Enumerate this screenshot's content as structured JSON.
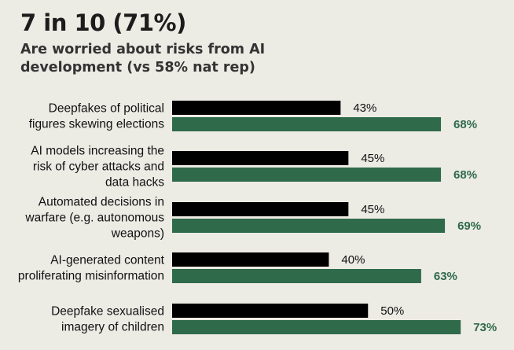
{
  "header": {
    "headline": "7 in 10 (71%)",
    "subtitle": "Are worried about risks from AI development (vs 58% nat rep)"
  },
  "chart_data": {
    "type": "bar",
    "orientation": "horizontal",
    "categories": [
      [
        "Deepfakes of political",
        "figures skewing elections"
      ],
      [
        "AI models increasing the",
        "risk of cyber attacks and",
        "data hacks"
      ],
      [
        "Automated decisions in",
        "warfare (e.g. autonomous",
        "weapons)"
      ],
      [
        "AI-generated content",
        "proliferating misinformation"
      ],
      [
        "Deepfake sexualised",
        "imagery of children"
      ]
    ],
    "series": [
      {
        "values": [
          43,
          45,
          45,
          40,
          50
        ],
        "color": "#000000",
        "labels": [
          "43%",
          "45%",
          "45%",
          "40%",
          "50%"
        ]
      },
      {
        "values": [
          68,
          68,
          69,
          63,
          73
        ],
        "color": "#2f6a4a",
        "labels": [
          "68%",
          "68%",
          "69%",
          "63%",
          "73%"
        ]
      }
    ],
    "xlim": [
      0,
      100
    ],
    "grid": false,
    "legend": "none"
  }
}
